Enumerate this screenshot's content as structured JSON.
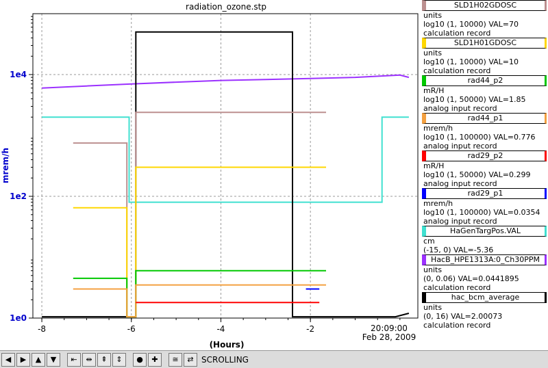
{
  "chart_data": {
    "type": "line",
    "title": "radiation_ozone.stp",
    "xlabel": "(Hours)",
    "ylabel": "mrem/h",
    "y_scale": "log10",
    "ylim": [
      1,
      100000
    ],
    "xlim": [
      -8.2,
      0.4
    ],
    "y_ticks": [
      {
        "value": 1,
        "label": "1e0"
      },
      {
        "value": 100,
        "label": "1e2"
      },
      {
        "value": 10000,
        "label": "1e4"
      }
    ],
    "x_ticks": [
      {
        "value": -8,
        "label": "-8"
      },
      {
        "value": -6,
        "label": "-6"
      },
      {
        "value": -4,
        "label": "-4"
      },
      {
        "value": -2,
        "label": "-2"
      }
    ],
    "time_label": "20:09:00",
    "date_label": "Feb 28, 2009",
    "grid": true,
    "legend_position": "right",
    "series": [
      {
        "name": "HacB_HPE1313A:0_Ch30PPM",
        "color": "#9b30ff",
        "x": [
          -8.0,
          -7.0,
          -6.0,
          -5.0,
          -4.0,
          -3.0,
          -2.0,
          -1.0,
          0.0,
          0.2
        ],
        "y": [
          6000,
          6500,
          7000,
          7500,
          8000,
          8300,
          8600,
          9000,
          9800,
          9000
        ]
      },
      {
        "name": "HaGenTargPos.VAL",
        "color": "#40e0d0",
        "x": [
          -8.0,
          -6.05,
          -6.05,
          -0.4,
          -0.4,
          0.2
        ],
        "y": [
          2000,
          2000,
          80,
          80,
          2000,
          2000
        ]
      },
      {
        "name": "hac_bcm_average",
        "color": "#000000",
        "x": [
          -8.0,
          -5.9,
          -5.9,
          -2.4,
          -2.4,
          -1.0,
          -0.1,
          0.2
        ],
        "y": [
          1.05,
          1.05,
          50000,
          50000,
          1.05,
          1.05,
          1.05,
          1.2
        ]
      },
      {
        "name": "SLD1H02GDOSC",
        "color": "#bc8f8f",
        "x": [
          -7.3,
          -6.1,
          -6.1,
          -5.9,
          -5.9,
          -1.65
        ],
        "y": [
          750,
          750,
          1.05,
          1.05,
          2400,
          2400
        ]
      },
      {
        "name": "SLD1H01GDOSC",
        "color": "#ffd700",
        "x": [
          -7.3,
          -6.1,
          -6.1,
          -5.9,
          -5.9,
          -1.65
        ],
        "y": [
          65,
          65,
          1.05,
          1.05,
          300,
          300
        ]
      },
      {
        "name": "rad44_p2",
        "color": "#00c800",
        "x": [
          -7.3,
          -6.1,
          -6.1,
          -5.9,
          -5.9,
          -1.65
        ],
        "y": [
          4.5,
          4.5,
          1.05,
          1.05,
          6,
          6
        ]
      },
      {
        "name": "rad44_p1",
        "color": "#f4a040",
        "x": [
          -7.3,
          -6.1,
          -6.1,
          -5.9,
          -5.9,
          -1.65
        ],
        "y": [
          3,
          3,
          1.05,
          1.05,
          3.5,
          3.5
        ]
      },
      {
        "name": "rad29_p2",
        "color": "#ff0000",
        "x": [
          -5.9,
          -1.8
        ],
        "y": [
          1.8,
          1.8
        ]
      },
      {
        "name": "rad29_p1",
        "color": "#0000ff",
        "x": [
          -2.1,
          -1.8
        ],
        "y": [
          3,
          3
        ]
      }
    ]
  },
  "legend": [
    {
      "name": "SLD1H02GDOSC",
      "color": "#bc8f8f",
      "lines": [
        "units",
        "log10 (1, 10000) VAL=70",
        "calculation record"
      ]
    },
    {
      "name": "SLD1H01GDOSC",
      "color": "#ffd700",
      "lines": [
        "units",
        "log10 (1, 10000) VAL=10",
        "calculation record"
      ]
    },
    {
      "name": "rad44_p2",
      "color": "#00c800",
      "lines": [
        "mR/H",
        "log10 (1, 50000) VAL=1.85",
        "analog input record"
      ]
    },
    {
      "name": "rad44_p1",
      "color": "#f4a040",
      "lines": [
        "mrem/h",
        "log10 (1, 100000) VAL=0.776",
        "analog input record"
      ]
    },
    {
      "name": "rad29_p2",
      "color": "#ff0000",
      "lines": [
        "mR/H",
        "log10 (1, 50000) VAL=0.299",
        "analog input record"
      ]
    },
    {
      "name": "rad29_p1",
      "color": "#0000ff",
      "lines": [
        "mrem/h",
        "log10 (1, 100000) VAL=0.0354",
        "analog input record"
      ]
    },
    {
      "name": "HaGenTargPos.VAL",
      "color": "#40e0d0",
      "lines": [
        "cm",
        "(-15, 0) VAL=-5.36"
      ]
    },
    {
      "name": "HacB_HPE1313A:0_Ch30PPM",
      "color": "#9b30ff",
      "lines": [
        "units",
        "(0, 0.06) VAL=0.0441895",
        "calculation record"
      ]
    },
    {
      "name": "hac_bcm_average",
      "color": "#000000",
      "lines": [
        "units",
        "(0, 16) VAL=2.00073",
        "calculation record"
      ]
    }
  ],
  "toolbar": {
    "buttons": [
      {
        "icon": "arrow-left-icon",
        "glyph": "◀"
      },
      {
        "icon": "arrow-right-icon",
        "glyph": "▶"
      },
      {
        "icon": "arrow-up-icon",
        "glyph": "▲"
      },
      {
        "icon": "arrow-down-icon",
        "glyph": "▼"
      },
      {
        "icon": "zoom-in-horizontal-icon",
        "glyph": "⇤"
      },
      {
        "icon": "zoom-out-horizontal-icon",
        "glyph": "⇹"
      },
      {
        "icon": "zoom-in-vertical-icon",
        "glyph": "⇞"
      },
      {
        "icon": "zoom-out-vertical-icon",
        "glyph": "⇕"
      },
      {
        "icon": "reset-icon",
        "glyph": "●"
      },
      {
        "icon": "plus-icon",
        "glyph": "✚"
      },
      {
        "icon": "autoscale-icon",
        "glyph": "≅"
      },
      {
        "icon": "scroll-mode-icon",
        "glyph": "⇄"
      }
    ],
    "status": "SCROLLING"
  }
}
